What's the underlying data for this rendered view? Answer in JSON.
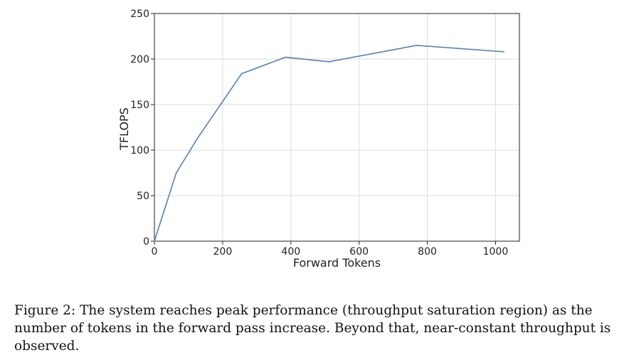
{
  "chart_data": {
    "type": "line",
    "xlabel": "Forward Tokens",
    "ylabel": "TFLOPS",
    "xlim": [
      0,
      1070
    ],
    "ylim": [
      0,
      250
    ],
    "x_ticks": [
      0,
      200,
      400,
      600,
      800,
      1000
    ],
    "y_ticks": [
      0,
      50,
      100,
      150,
      200,
      250
    ],
    "grid": true,
    "series": [
      {
        "color": "#5a7fb0",
        "x": [
          0,
          64,
          128,
          256,
          384,
          512,
          768,
          1024
        ],
        "y": [
          0,
          75,
          114,
          184,
          202,
          197,
          215,
          208
        ]
      }
    ]
  },
  "caption": "Figure 2: The system reaches peak performance (throughput saturation region) as the number of tokens in the forward pass increase. Beyond that, near-constant throughput is observed."
}
